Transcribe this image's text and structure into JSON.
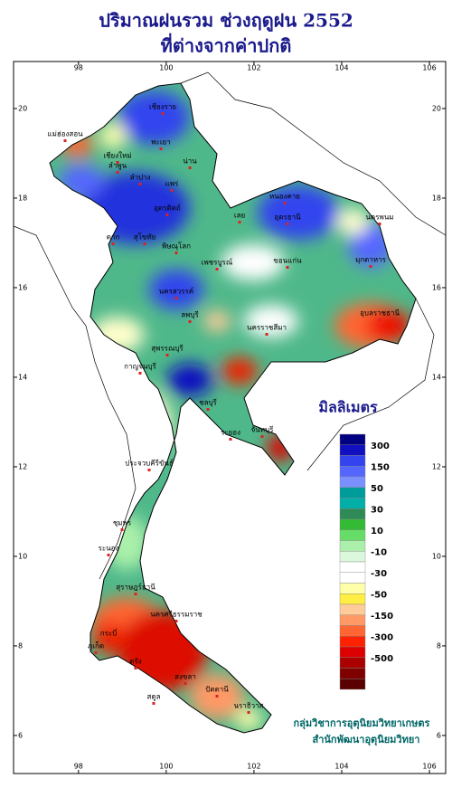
{
  "map": {
    "title": [
      "ปริมาณฝนรวม ช่วงฤดูฝน 2552",
      "ที่ต่างจากค่าปกติ"
    ],
    "xlim": [
      96.52,
      106.37
    ],
    "ylim": [
      5.15,
      21.05
    ],
    "xticks": [
      98,
      100,
      102,
      104,
      106
    ],
    "yticks": [
      6,
      8,
      10,
      12,
      14,
      16,
      18,
      20
    ],
    "legend": {
      "title": "มิลลิเมตร",
      "colors": [
        "#000080",
        "#1010c0",
        "#3344ee",
        "#5566ff",
        "#7a90ff",
        "#009c9c",
        "#00b0a8",
        "#2e8b57",
        "#33bb33",
        "#66dd66",
        "#aaf0aa",
        "#dcf8dc",
        "#ffffff",
        "#ffffff",
        "#ffffaa",
        "#ffee44",
        "#ffcc99",
        "#ff9966",
        "#ff6633",
        "#ff2200",
        "#dd0000",
        "#aa0000",
        "#800000",
        "#5a0000"
      ],
      "labels": [
        300,
        150,
        50,
        30,
        10,
        -10,
        -30,
        -50,
        -150,
        -300,
        -500
      ]
    },
    "provinces": [
      "แม่ฮ่องสอน",
      "เชียงราย",
      "พะเยา",
      "น่าน",
      "เชียงใหม่",
      "ลำพูน",
      "ลำปาง",
      "แพร่",
      "อุตรดิตถ์",
      "ตาก",
      "สุโขทัย",
      "พิษณุโลก",
      "เลย",
      "หนองคาย",
      "อุดรธานี",
      "นครพนม",
      "ขอนแก่น",
      "มุกดาหาร",
      "เพชรบูรณ์",
      "นครสวรรค์",
      "ลพบุรี",
      "นครราชสีมา",
      "อุบลราชธานี",
      "สุพรรณบุรี",
      "กาญจนบุรี",
      "ชลบุรี",
      "ระยอง",
      "จันทบุรี",
      "ประจวบคีรีขันธ์",
      "ชุมพร",
      "ระนอง",
      "สุราษฎร์ธานี",
      "นครศรีธรรมราช",
      "กระบี่",
      "ภูเก็ต",
      "ตรัง",
      "สตูล",
      "สงขลา",
      "ปัตตานี",
      "นราธิวาส"
    ],
    "footer": [
      "กลุ่มวิชาการอุตุนิยมวิทยาเกษตร",
      "สำนักพัฒนาอุตุนิยมวิทยา"
    ]
  }
}
